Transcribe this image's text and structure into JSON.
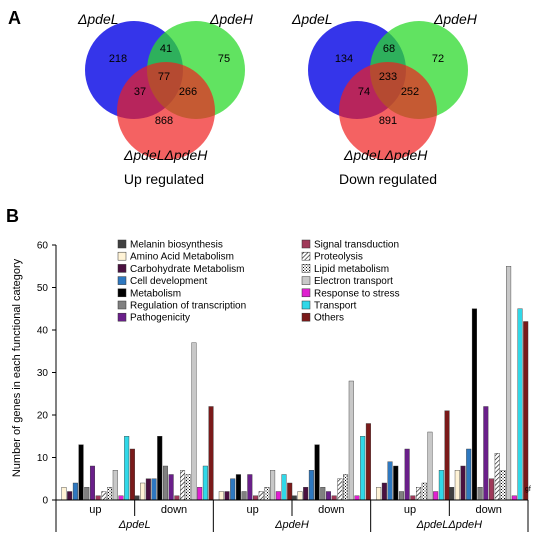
{
  "panel_a_label": "A",
  "panel_b_label": "B",
  "venn": [
    {
      "caption": "Up regulated",
      "set_labels": {
        "top_left": "ΔpdeL",
        "top_right": "ΔpdeH",
        "bottom": "ΔpdeLΔpdeH"
      },
      "counts": {
        "l_only": "218",
        "h_only": "75",
        "lh_only": "868",
        "l_h": "41",
        "l_lh": "37",
        "h_lh": "266",
        "all": "77"
      },
      "colors": {
        "l": "#1f1fe8",
        "h": "#2cd92c",
        "lh": "#f02020"
      }
    },
    {
      "caption": "Down regulated",
      "set_labels": {
        "top_left": "ΔpdeL",
        "top_right": "ΔpdeH",
        "bottom": "ΔpdeLΔpdeH"
      },
      "counts": {
        "l_only": "134",
        "h_only": "72",
        "lh_only": "891",
        "l_h": "68",
        "l_lh": "74",
        "h_lh": "252",
        "all": "233"
      },
      "colors": {
        "l": "#1f1fe8",
        "h": "#2cd92c",
        "lh": "#f02020"
      }
    }
  ],
  "chart_data": {
    "type": "bar",
    "ylabel": "Number of genes in each functional category",
    "ylim": [
      0,
      60
    ],
    "yticks": [
      0,
      10,
      20,
      30,
      40,
      50,
      60
    ],
    "groups": [
      {
        "genotype": "ΔpdeL",
        "directions": [
          "up",
          "down"
        ]
      },
      {
        "genotype": "ΔpdeH",
        "directions": [
          "up",
          "down"
        ]
      },
      {
        "genotype": "ΔpdeLΔpdeH",
        "directions": [
          "up",
          "down"
        ]
      }
    ],
    "categories": [
      "ΔpdeL up",
      "ΔpdeL down",
      "ΔpdeH up",
      "ΔpdeH down",
      "ΔpdeLΔpdeH up",
      "ΔpdeLΔpdeH down"
    ],
    "series": [
      {
        "name": "Melanin biosynthesis",
        "color": "#404040",
        "pattern": "solid",
        "values": [
          0,
          1,
          0,
          1,
          0,
          3
        ]
      },
      {
        "name": "Amino Acid Metabolism",
        "color": "#fff3d6",
        "pattern": "solid",
        "values": [
          3,
          4,
          2,
          2,
          3,
          7
        ]
      },
      {
        "name": "Carbohydrate Metabolism",
        "color": "#4a1040",
        "pattern": "solid",
        "values": [
          2,
          5,
          2,
          3,
          4,
          8
        ]
      },
      {
        "name": "Cell development",
        "color": "#2e78c0",
        "pattern": "solid",
        "values": [
          4,
          5,
          5,
          7,
          9,
          12
        ]
      },
      {
        "name": "Metabolism",
        "color": "#000000",
        "pattern": "solid",
        "values": [
          13,
          15,
          6,
          13,
          8,
          45
        ]
      },
      {
        "name": "Regulation of transcription",
        "color": "#808080",
        "pattern": "solid",
        "values": [
          3,
          8,
          2,
          3,
          2,
          3
        ]
      },
      {
        "name": "Pathogenicity",
        "color": "#6a1f8a",
        "pattern": "solid",
        "values": [
          8,
          6,
          6,
          2,
          12,
          22
        ]
      },
      {
        "name": "Signal transduction",
        "color": "#a03a5a",
        "pattern": "solid",
        "values": [
          1,
          1,
          1,
          1,
          1,
          5
        ]
      },
      {
        "name": "Proteolysis",
        "color": "#ffffff",
        "pattern": "hatch",
        "values": [
          2,
          7,
          2,
          5,
          3,
          11
        ]
      },
      {
        "name": "Lipid metabolism",
        "color": "#ffffff",
        "pattern": "dots",
        "values": [
          3,
          6,
          3,
          6,
          4,
          7
        ]
      },
      {
        "name": "Electron transport",
        "color": "#c8c8c8",
        "pattern": "solid",
        "values": [
          7,
          37,
          7,
          28,
          16,
          55
        ]
      },
      {
        "name": "Response to stress",
        "color": "#e020d0",
        "pattern": "solid",
        "values": [
          1,
          3,
          2,
          1,
          2,
          1
        ]
      },
      {
        "name": "Transport",
        "color": "#30d8e8",
        "pattern": "solid",
        "values": [
          15,
          8,
          6,
          15,
          7,
          45
        ]
      },
      {
        "name": "Others",
        "color": "#7a1a1a",
        "pattern": "solid",
        "values": [
          12,
          22,
          4,
          18,
          21,
          42
        ]
      }
    ],
    "legend_placement": "top-left, two columns",
    "grid": false,
    "side_note": "gf"
  }
}
